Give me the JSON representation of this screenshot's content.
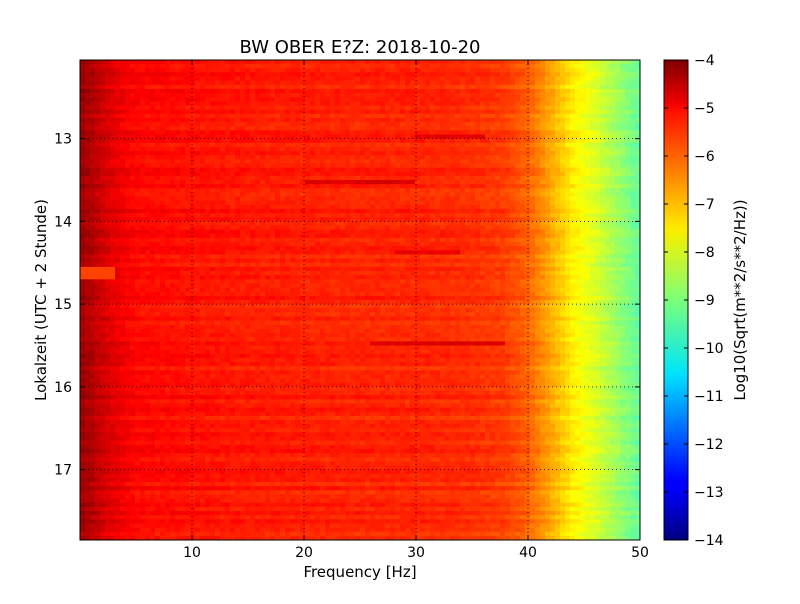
{
  "chart_data": {
    "type": "heatmap",
    "title": "BW OBER E?Z: 2018-10-20",
    "xlabel": "Frequency [Hz]",
    "ylabel": "Lokalzeit (UTC + 2 Stunde)",
    "xlim": [
      0,
      50
    ],
    "ylim": [
      12.05,
      17.85
    ],
    "y_inverted": true,
    "x_ticks": [
      10,
      20,
      30,
      40,
      50
    ],
    "y_ticks": [
      13,
      14,
      15,
      16,
      17
    ],
    "grid": true,
    "colorbar": {
      "label": "Log10(Sqrt(m**2/s**2/Hz))",
      "range": [
        -14,
        -4
      ],
      "ticks": [
        -4,
        -5,
        -6,
        -7,
        -8,
        -9,
        -10,
        -11,
        -12,
        -13,
        -14
      ],
      "colormap": "jet",
      "position": "right"
    },
    "frequency_profile": {
      "frequency_hz": [
        0,
        1,
        2,
        3,
        5,
        10,
        15,
        20,
        25,
        30,
        35,
        38,
        40,
        42,
        44,
        46,
        48,
        50
      ],
      "log10_value": [
        -4.3,
        -4.5,
        -4.8,
        -5.0,
        -5.3,
        -5.4,
        -5.5,
        -5.55,
        -5.6,
        -5.6,
        -5.7,
        -5.85,
        -6.2,
        -6.9,
        -7.6,
        -8.1,
        -8.7,
        -9.3
      ]
    },
    "dark_bands": [
      {
        "hour": 13.5,
        "freq_start": 20,
        "freq_end": 30,
        "value": -4.9
      },
      {
        "hour": 15.45,
        "freq_start": 26,
        "freq_end": 38,
        "value": -4.9
      },
      {
        "hour": 12.95,
        "freq_start": 30,
        "freq_end": 36,
        "value": -5.0
      },
      {
        "hour": 14.35,
        "freq_start": 28,
        "freq_end": 34,
        "value": -5.1
      }
    ],
    "bright_bands": [
      {
        "hour": 14.6,
        "freq_start": 0,
        "freq_end": 3,
        "value": -5.9
      }
    ]
  }
}
